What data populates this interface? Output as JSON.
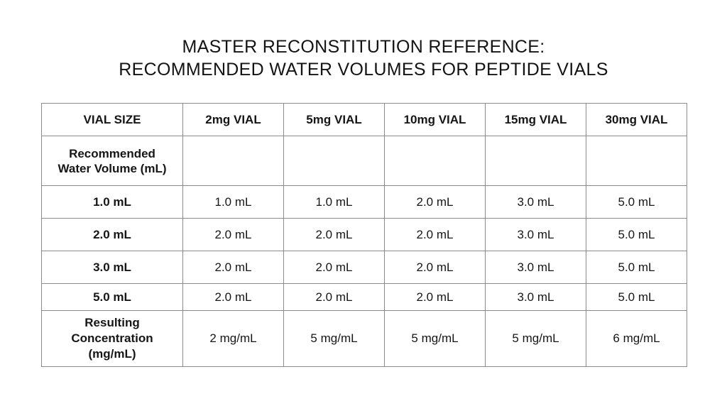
{
  "title": {
    "line1": "MASTER RECONSTITUTION REFERENCE:",
    "line2": "RECOMMENDED WATER VOLUMES FOR PEPTIDE VIALS"
  },
  "table": {
    "header": {
      "row_label": "VIAL SIZE",
      "columns": [
        "2mg VIAL",
        "5mg VIAL",
        "10mg VIAL",
        "15mg VIAL",
        "30mg VIAL"
      ]
    },
    "recommended_row": {
      "label_line1": "Recommended",
      "label_line2": "Water Volume (mL)",
      "values": [
        "",
        "",
        "",
        "",
        ""
      ]
    },
    "rows": [
      {
        "label": "1.0 mL",
        "values": [
          "1.0 mL",
          "1.0 mL",
          "2.0 mL",
          "3.0 mL",
          "5.0 mL"
        ]
      },
      {
        "label": "2.0 mL",
        "values": [
          "2.0 mL",
          "2.0 mL",
          "2.0 mL",
          "3.0 mL",
          "5.0 mL"
        ]
      },
      {
        "label": "3.0 mL",
        "values": [
          "2.0 mL",
          "2.0 mL",
          "2.0 mL",
          "3.0 mL",
          "5.0 mL"
        ]
      },
      {
        "label": "5.0 mL",
        "values": [
          "2.0 mL",
          "2.0 mL",
          "2.0 mL",
          "3.0 mL",
          "5.0 mL"
        ]
      }
    ],
    "concentration_row": {
      "label_line1": "Resulting",
      "label_line2": "Concentration",
      "label_line3": "(mg/mL)",
      "values": [
        "2 mg/mL",
        "5 mg/mL",
        "5 mg/mL",
        "5 mg/mL",
        "6 mg/mL"
      ]
    }
  },
  "colors": {
    "background": "#ffffff",
    "text": "#141414",
    "border": "#8c8c8c"
  }
}
